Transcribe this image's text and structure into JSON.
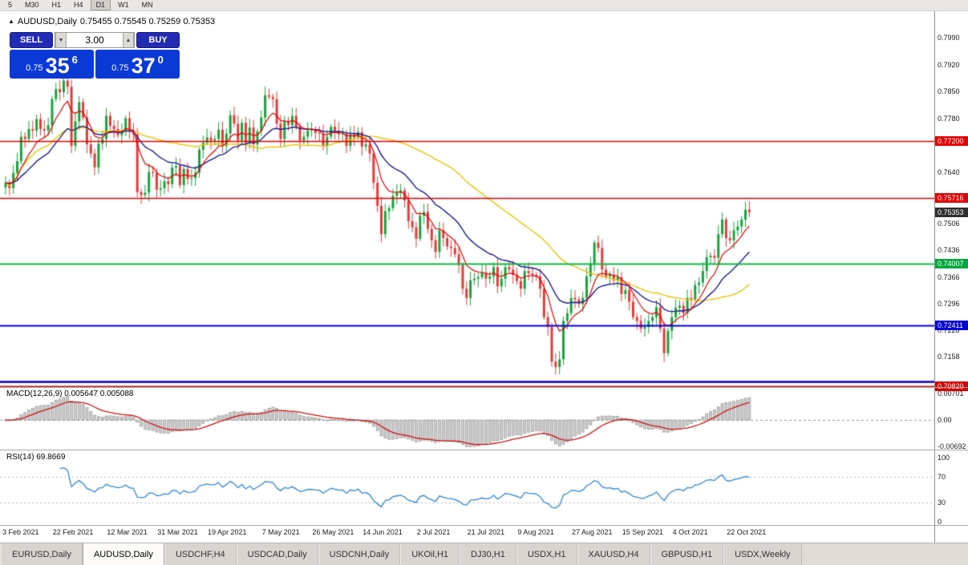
{
  "window": {
    "timeframes": [
      "5",
      "M30",
      "H1",
      "H4",
      "D1",
      "W1",
      "MN"
    ],
    "active_timeframe": "D1"
  },
  "chart": {
    "title_symbol": "AUDUSD,Daily",
    "title_ohlc": "0.75455 0.75545 0.75259 0.75353",
    "trade_panel": {
      "sell_label": "SELL",
      "buy_label": "BUY",
      "volume": "3.00",
      "sell_price_head": "0.75",
      "sell_price_big": "35",
      "sell_price_sup": "6",
      "buy_price_head": "0.75",
      "buy_price_big": "37",
      "buy_price_sup": "0"
    },
    "price_axis": {
      "grid": [
        "0.7990",
        "0.7920",
        "0.7850",
        "0.7780",
        "0.7640",
        "0.7506",
        "0.7436",
        "0.7366",
        "0.7296",
        "0.7228",
        "0.7158"
      ],
      "tags": [
        {
          "text": "0.77200",
          "price": 0.772,
          "color": "#E00000",
          "name": "resistance-1-price-tag"
        },
        {
          "text": "0.75716",
          "price": 0.75716,
          "color": "#E00000",
          "name": "resistance-2-price-tag"
        },
        {
          "text": "0.75353",
          "price": 0.75353,
          "color": "#2F2F2F",
          "name": "current-price-tag"
        },
        {
          "text": "0.74007",
          "price": 0.74007,
          "color": "#00A73C",
          "name": "support-green-price-tag"
        },
        {
          "text": "0.72411",
          "price": 0.72411,
          "color": "#0000D8",
          "name": "support-blue-price-tag"
        },
        {
          "text": "0.70820",
          "price": 0.7082,
          "color": "#D40000",
          "name": "support-red-price-tag"
        }
      ]
    },
    "macd": {
      "label": "MACD(12,26,9) 0.005647 0.005088",
      "axis": [
        "0.00701",
        "0.00",
        "-0.00692"
      ]
    },
    "rsi": {
      "label": "RSI(14) 69.8669",
      "axis": [
        "100",
        "70",
        "30",
        "0"
      ]
    },
    "date_axis": [
      {
        "label": "3 Feb 2021",
        "bar": 0
      },
      {
        "label": "22 Feb 2021",
        "bar": 13
      },
      {
        "label": "12 Mar 2021",
        "bar": 27
      },
      {
        "label": "31 Mar 2021",
        "bar": 40
      },
      {
        "label": "19 Apr 2021",
        "bar": 53
      },
      {
        "label": "7 May 2021",
        "bar": 67
      },
      {
        "label": "26 May 2021",
        "bar": 80
      },
      {
        "label": "14 Jun 2021",
        "bar": 93
      },
      {
        "label": "2 Jul 2021",
        "bar": 107
      },
      {
        "label": "21 Jul 2021",
        "bar": 120
      },
      {
        "label": "9 Aug 2021",
        "bar": 133
      },
      {
        "label": "27 Aug 2021",
        "bar": 147
      },
      {
        "label": "15 Sep 2021",
        "bar": 160
      },
      {
        "label": "4 Oct 2021",
        "bar": 173
      },
      {
        "label": "22 Oct 2021",
        "bar": 187
      }
    ]
  },
  "tabs": {
    "items": [
      "EURUSD,Daily",
      "AUDUSD,Daily",
      "USDCHF,H4",
      "USDCAD,Daily",
      "USDCNH,Daily",
      "UKOil,H1",
      "DJ30,H1",
      "USDX,H1",
      "XAUUSD,H4",
      "GBPUSD,H1",
      "USDX,Weekly"
    ],
    "active": "AUDUSD,Daily"
  },
  "colors": {
    "candle_up": "#17A33D",
    "candle_down": "#E23B3B",
    "ma_fast_red": "#E00000",
    "ma_mid_navy": "#1C1C90",
    "ma_slow_yellow": "#E8C400",
    "macd_histogram": "#CDCDCD",
    "macd_signal": "#CC1111",
    "rsi_line": "#2F86D2",
    "panel_blue": "#0B39D6",
    "button_navy": "#232BB5"
  },
  "chart_data": {
    "type": "candlestick",
    "symbol": "AUDUSD",
    "timeframe": "Daily",
    "title": "AUDUSD,Daily",
    "ylim": [
      0.7088,
      0.799
    ],
    "first_open": 0.76,
    "closes": [
      0.7612,
      0.7598,
      0.7638,
      0.7668,
      0.7732,
      0.7726,
      0.7752,
      0.7748,
      0.7778,
      0.7752,
      0.7748,
      0.7762,
      0.783,
      0.7856,
      0.7848,
      0.7878,
      0.7862,
      0.7708,
      0.7772,
      0.7822,
      0.7782,
      0.7712,
      0.7688,
      0.7652,
      0.7714,
      0.7726,
      0.7786,
      0.776,
      0.7752,
      0.7736,
      0.7748,
      0.778,
      0.7745,
      0.7738,
      0.7588,
      0.758,
      0.7586,
      0.764,
      0.7638,
      0.7594,
      0.7598,
      0.7616,
      0.7608,
      0.7652,
      0.7656,
      0.7606,
      0.7648,
      0.7622,
      0.7624,
      0.7638,
      0.7698,
      0.7716,
      0.773,
      0.7722,
      0.7726,
      0.775,
      0.7708,
      0.774,
      0.7788,
      0.7766,
      0.7722,
      0.7768,
      0.7716,
      0.7756,
      0.7712,
      0.7746,
      0.7782,
      0.784,
      0.7836,
      0.783,
      0.7766,
      0.7726,
      0.7772,
      0.7762,
      0.7786,
      0.7758,
      0.7722,
      0.7732,
      0.7748,
      0.775,
      0.7742,
      0.774,
      0.7708,
      0.7732,
      0.7758,
      0.7748,
      0.7738,
      0.774,
      0.7708,
      0.7738,
      0.773,
      0.7744,
      0.7706,
      0.7712,
      0.7688,
      0.7612,
      0.7552,
      0.7478,
      0.7538,
      0.7546,
      0.7578,
      0.7586,
      0.7592,
      0.7566,
      0.7512,
      0.7496,
      0.7466,
      0.7526,
      0.7536,
      0.7492,
      0.7462,
      0.7432,
      0.7488,
      0.7468,
      0.7446,
      0.7442,
      0.7426,
      0.7398,
      0.7336,
      0.7312,
      0.7358,
      0.7362,
      0.7366,
      0.7378,
      0.7362,
      0.7368,
      0.7392,
      0.7342,
      0.7362,
      0.7392,
      0.7386,
      0.7372,
      0.7356,
      0.7336,
      0.7382,
      0.7376,
      0.7372,
      0.7368,
      0.7336,
      0.7262,
      0.7236,
      0.7146,
      0.7132,
      0.7152,
      0.7252,
      0.7272,
      0.7312,
      0.7308,
      0.7296,
      0.7312,
      0.7368,
      0.7402,
      0.7456,
      0.7442,
      0.7386,
      0.7368,
      0.7372,
      0.7358,
      0.7366,
      0.7322,
      0.7332,
      0.7302,
      0.7262,
      0.7252,
      0.7232,
      0.7236,
      0.7252,
      0.7262,
      0.7288,
      0.7232,
      0.7168,
      0.7226,
      0.7262,
      0.7286,
      0.7292,
      0.7272,
      0.7312,
      0.7308,
      0.7346,
      0.7352,
      0.7382,
      0.7418,
      0.7422,
      0.7416,
      0.7478,
      0.7516,
      0.7468,
      0.7462,
      0.7488,
      0.7498,
      0.7516,
      0.7542,
      0.7535
    ],
    "hlines": [
      {
        "price": 0.772,
        "color": "#E00000",
        "width": 1.3
      },
      {
        "price": 0.75716,
        "color": "#E00000",
        "width": 1.3
      },
      {
        "price": 0.74007,
        "color": "#0ABB41",
        "width": 1.8
      },
      {
        "price": 0.72411,
        "color": "#0000E6",
        "width": 1.8
      },
      {
        "price": 0.7095,
        "color": "#0000B4",
        "width": 2.5
      },
      {
        "price": 0.7082,
        "color": "#CC0000",
        "width": 1.8
      }
    ],
    "moving_averages": [
      {
        "name": "fast",
        "period": 8,
        "method": "ema",
        "color": "#E00000"
      },
      {
        "name": "mid",
        "period": 21,
        "method": "ema",
        "color": "#1C1C90"
      },
      {
        "name": "slow",
        "period": 50,
        "method": "sma",
        "color": "#E8C400"
      }
    ],
    "indicators": [
      {
        "name": "MACD",
        "params": [
          12,
          26,
          9
        ],
        "values": [
          0.005647,
          0.005088
        ],
        "range": [
          -0.00692,
          0.00701
        ]
      },
      {
        "name": "RSI",
        "params": [
          14
        ],
        "value": 69.8669,
        "levels": [
          30,
          70
        ],
        "range": [
          0,
          100
        ]
      }
    ]
  }
}
